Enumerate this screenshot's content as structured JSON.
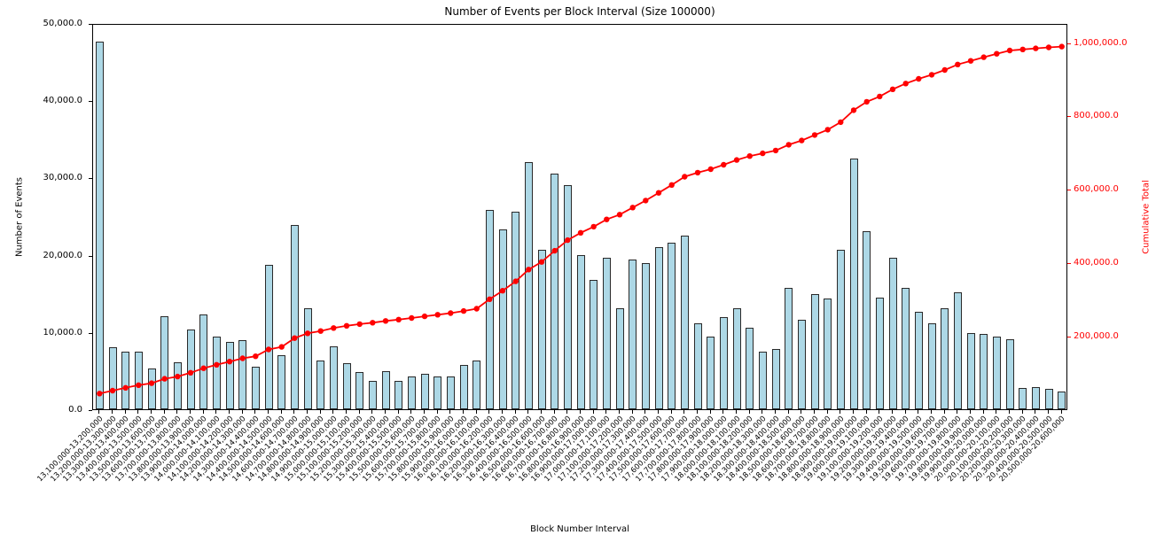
{
  "chart_data": {
    "type": "bar",
    "title": "Number of Events per Block Interval (Size 100000)",
    "xlabel": "Block Number Interval",
    "ylabel_left": "Number of Events",
    "ylabel_right": "Cumulative Total",
    "grid": false,
    "colors": {
      "bar_fill": "#ADD8E6",
      "bar_edge": "#2a2a2a",
      "line": "#ff0000",
      "right_axis_text": "#ff0000",
      "left_axis_text": "#000000",
      "background": "#ffffff"
    },
    "y_left": {
      "lim": [
        0,
        50000
      ],
      "tick_values": [
        0,
        10000,
        20000,
        30000,
        40000,
        50000
      ],
      "tick_labels": [
        "0.0",
        "10,000.0",
        "20,000.0",
        "30,000.0",
        "40,000.0",
        "50,000.0"
      ]
    },
    "y_right": {
      "lim": [
        0,
        1052000
      ],
      "tick_values": [
        200000,
        400000,
        600000,
        800000,
        1000000
      ],
      "tick_labels": [
        "200,000.0",
        "400,000.0",
        "600,000.0",
        "800,000.0",
        "1,000,000.0"
      ]
    },
    "categories": [
      "13,100,000-13,200,000",
      "13,200,000-13,300,000",
      "13,300,000-13,400,000",
      "13,400,000-13,500,000",
      "13,500,000-13,600,000",
      "13,600,000-13,700,000",
      "13,700,000-13,800,000",
      "13,800,000-13,900,000",
      "13,900,000-14,000,000",
      "14,000,000-14,100,000",
      "14,100,000-14,200,000",
      "14,200,000-14,300,000",
      "14,300,000-14,400,000",
      "14,400,000-14,500,000",
      "14,500,000-14,600,000",
      "14,600,000-14,700,000",
      "14,700,000-14,800,000",
      "14,800,000-14,900,000",
      "14,900,000-15,000,000",
      "15,000,000-15,100,000",
      "15,100,000-15,200,000",
      "15,200,000-15,300,000",
      "15,300,000-15,400,000",
      "15,400,000-15,500,000",
      "15,500,000-15,600,000",
      "15,600,000-15,700,000",
      "15,700,000-15,800,000",
      "15,800,000-15,900,000",
      "15,900,000-16,000,000",
      "16,000,000-16,100,000",
      "16,100,000-16,200,000",
      "16,200,000-16,300,000",
      "16,300,000-16,400,000",
      "16,400,000-16,500,000",
      "16,500,000-16,600,000",
      "16,600,000-16,700,000",
      "16,700,000-16,800,000",
      "16,800,000-16,900,000",
      "16,900,000-17,000,000",
      "17,000,000-17,100,000",
      "17,100,000-17,200,000",
      "17,200,000-17,300,000",
      "17,300,000-17,400,000",
      "17,400,000-17,500,000",
      "17,500,000-17,600,000",
      "17,600,000-17,700,000",
      "17,700,000-17,800,000",
      "17,800,000-17,900,000",
      "17,900,000-18,000,000",
      "18,000,000-18,100,000",
      "18,100,000-18,200,000",
      "18,200,000-18,300,000",
      "18,300,000-18,400,000",
      "18,400,000-18,500,000",
      "18,500,000-18,600,000",
      "18,600,000-18,700,000",
      "18,700,000-18,800,000",
      "18,800,000-18,900,000",
      "18,900,000-19,000,000",
      "19,000,000-19,100,000",
      "19,100,000-19,200,000",
      "19,200,000-19,300,000",
      "19,300,000-19,400,000",
      "19,400,000-19,500,000",
      "19,500,000-19,600,000",
      "19,600,000-19,700,000",
      "19,700,000-19,800,000",
      "19,800,000-19,900,000",
      "19,900,000-20,000,000",
      "20,000,000-20,100,000",
      "20,100,000-20,200,000",
      "20,200,000-20,300,000",
      "20,300,000-20,400,000",
      "20,400,000-20,500,000",
      "20,500,000-20,600,000"
    ],
    "series": [
      {
        "name": "Number of Events",
        "type": "bar",
        "axis": "left",
        "values": [
          47600,
          8000,
          7500,
          7400,
          5300,
          12000,
          6100,
          10300,
          12300,
          9400,
          8700,
          8900,
          5500,
          18700,
          7000,
          23800,
          13100,
          6300,
          8100,
          6000,
          4800,
          3700,
          4900,
          3700,
          4300,
          4600,
          4300,
          4300,
          5700,
          6300,
          25800,
          23300,
          25600,
          32000,
          20700,
          30500,
          29000,
          20000,
          16700,
          19600,
          13100,
          19400,
          18900,
          21000,
          21600,
          22500,
          11100,
          9400,
          11900,
          13100,
          10600,
          7500,
          7800,
          15700,
          11600,
          14900,
          14300,
          20600,
          32500,
          23100,
          14400,
          19600,
          15700,
          12600,
          11100,
          13100,
          15100,
          9900,
          9700,
          9400,
          9100,
          2800,
          2900,
          2600,
          2300
        ]
      },
      {
        "name": "Cumulative Total",
        "type": "line",
        "axis": "right",
        "values": [
          47600,
          55600,
          63100,
          70500,
          75800,
          87800,
          93900,
          104200,
          116500,
          125900,
          134600,
          143500,
          149000,
          167700,
          174700,
          198500,
          211600,
          217900,
          226000,
          232000,
          236800,
          240500,
          245400,
          249100,
          253400,
          258000,
          262300,
          266600,
          272300,
          278600,
          304400,
          327700,
          353300,
          385300,
          406000,
          436500,
          465500,
          485500,
          502200,
          521800,
          534900,
          554300,
          573200,
          594200,
          615800,
          638300,
          649400,
          658800,
          670700,
          683800,
          694400,
          701900,
          709700,
          725400,
          737000,
          751900,
          766200,
          786800,
          819300,
          842400,
          856800,
          876400,
          892100,
          904700,
          915800,
          928900,
          944000,
          953900,
          963600,
          973000,
          982100,
          984900,
          987800,
          990400,
          992700
        ]
      }
    ]
  }
}
